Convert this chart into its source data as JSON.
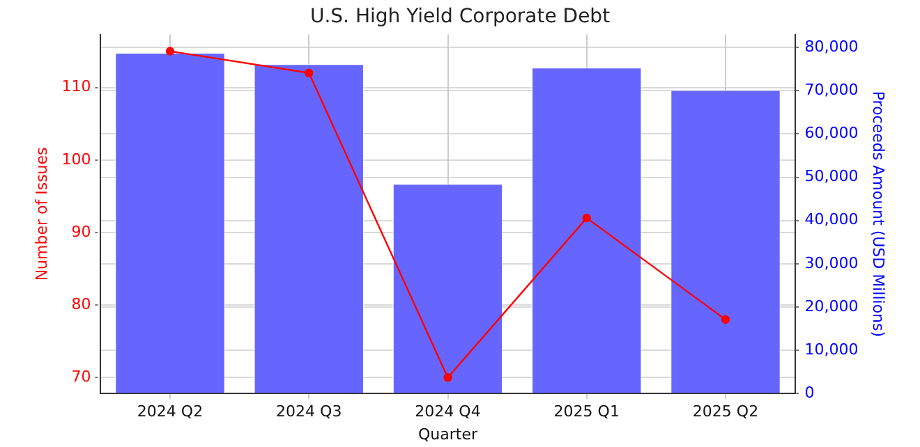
{
  "chart_data": {
    "type": "bar",
    "title": "U.S. High Yield Corporate Debt",
    "xlabel": "Quarter",
    "ylabel": "Number of Issues",
    "y2label": "Proceeds Amount (USD Millions)",
    "categories": [
      "2024 Q2",
      "2024 Q3",
      "2024 Q4",
      "2025 Q1",
      "2025 Q2"
    ],
    "series": [
      {
        "type": "line",
        "color": "#ff0000",
        "values": [
          115,
          112,
          70,
          92,
          78
        ]
      },
      {
        "axis": "y2",
        "color": "#6666ff",
        "values": [
          78900,
          76300,
          48600,
          75500,
          70300
        ]
      }
    ],
    "ylim": [
      67.8,
      117.3
    ],
    "yticks": [
      70,
      80,
      90,
      100,
      110
    ],
    "y2lim": [
      0,
      83000
    ],
    "y2ticks": [
      {
        "value": 0,
        "label": "0"
      },
      {
        "value": 10000,
        "label": "10,000"
      },
      {
        "value": 20000,
        "label": "20,000"
      },
      {
        "value": 30000,
        "label": "30,000"
      },
      {
        "value": 40000,
        "label": "40,000"
      },
      {
        "value": 50000,
        "label": "50,000"
      },
      {
        "value": 60000,
        "label": "60,000"
      },
      {
        "value": 70000,
        "label": "70,000"
      },
      {
        "value": 80000,
        "label": "80,000"
      }
    ],
    "grid": true,
    "marker": "circle"
  }
}
